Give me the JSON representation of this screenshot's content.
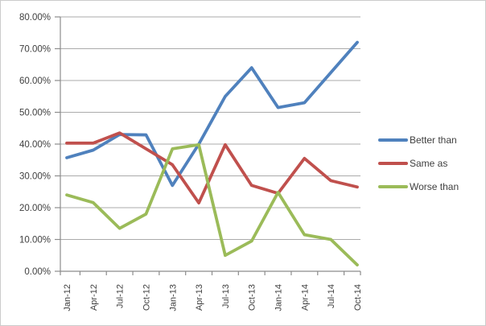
{
  "chart_data": {
    "type": "line",
    "title": "",
    "xlabel": "",
    "ylabel": "",
    "categories": [
      "Jan-12",
      "Apr-12",
      "Jul-12",
      "Oct-12",
      "Jan-13",
      "Apr-13",
      "Jul-13",
      "Oct-13",
      "Jan-14",
      "Apr-14",
      "Jul-14",
      "Oct-14"
    ],
    "series": [
      {
        "name": "Better than",
        "color": "#4F81BD",
        "values": [
          35.7,
          38.1,
          43.0,
          42.9,
          27.0,
          40.0,
          55.0,
          64.0,
          51.5,
          53.0,
          62.5,
          72.0
        ]
      },
      {
        "name": "Same as",
        "color": "#C0504D",
        "values": [
          40.3,
          40.3,
          43.5,
          38.5,
          33.5,
          21.5,
          39.8,
          27.0,
          24.5,
          35.5,
          28.5,
          26.5
        ]
      },
      {
        "name": "Worse than",
        "color": "#9BBB59",
        "values": [
          24.0,
          21.6,
          13.5,
          18.0,
          38.5,
          39.8,
          5.0,
          9.5,
          24.8,
          11.5,
          10.0,
          2.0
        ]
      }
    ],
    "ylim": [
      0,
      80
    ],
    "y_step": 10,
    "y_tick_labels": [
      "0.00%",
      "10.00%",
      "20.00%",
      "30.00%",
      "40.00%",
      "50.00%",
      "60.00%",
      "70.00%",
      "80.00%"
    ],
    "grid": true,
    "legend_position": "right",
    "legend_labels": [
      "Better than",
      "Same as",
      "Worse than"
    ]
  },
  "style": {
    "gridline_color": "#ababab",
    "axis_color": "#8c8c8c",
    "text_color": "#3f3f3f",
    "background": "#ffffff",
    "border_color": "#cccccc"
  }
}
